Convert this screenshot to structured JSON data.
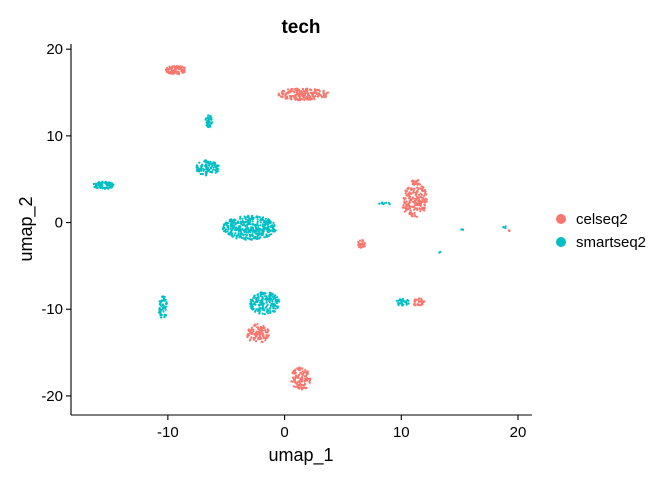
{
  "chart_data": {
    "type": "scatter",
    "title": "tech",
    "xlabel": "umap_1",
    "ylabel": "umap_2",
    "xlim": [
      -18.3,
      21.2
    ],
    "ylim": [
      -22.2,
      20.6
    ],
    "xticks": [
      -10,
      0,
      10,
      20
    ],
    "yticks": [
      -20,
      -10,
      0,
      10,
      20
    ],
    "grid": false,
    "legend_position": "right",
    "series": [
      {
        "name": "celseq2",
        "color": "#F8766D",
        "clusters": [
          {
            "cx": -9.3,
            "cy": 17.6,
            "rx": 0.9,
            "ry": 0.5,
            "n": 90
          },
          {
            "cx": 1.6,
            "cy": 14.8,
            "rx": 2.2,
            "ry": 0.7,
            "n": 180
          },
          {
            "cx": 11.2,
            "cy": 2.8,
            "rx": 1.0,
            "ry": 2.2,
            "n": 200
          },
          {
            "cx": 6.6,
            "cy": -2.5,
            "rx": 0.35,
            "ry": 0.5,
            "n": 30
          },
          {
            "cx": 11.5,
            "cy": -9.2,
            "rx": 0.5,
            "ry": 0.5,
            "n": 30
          },
          {
            "cx": -2.3,
            "cy": -12.8,
            "rx": 1.0,
            "ry": 1.1,
            "n": 110
          },
          {
            "cx": 1.4,
            "cy": -18.0,
            "rx": 0.9,
            "ry": 1.3,
            "n": 120
          },
          {
            "cx": 19.2,
            "cy": -0.9,
            "rx": 0.15,
            "ry": 0.15,
            "n": 3
          },
          {
            "cx": 10.3,
            "cy": 1.6,
            "rx": 0.3,
            "ry": 0.5,
            "n": 12
          }
        ]
      },
      {
        "name": "smartseq2",
        "color": "#00BFC4",
        "clusters": [
          {
            "cx": -6.5,
            "cy": 11.7,
            "rx": 0.3,
            "ry": 0.7,
            "n": 40
          },
          {
            "cx": -6.6,
            "cy": 6.3,
            "rx": 1.0,
            "ry": 0.9,
            "n": 100
          },
          {
            "cx": -15.5,
            "cy": 4.3,
            "rx": 0.9,
            "ry": 0.45,
            "n": 80
          },
          {
            "cx": -3.0,
            "cy": -0.6,
            "rx": 2.3,
            "ry": 1.4,
            "n": 380
          },
          {
            "cx": -10.4,
            "cy": -9.8,
            "rx": 0.4,
            "ry": 1.3,
            "n": 60
          },
          {
            "cx": -1.7,
            "cy": -9.3,
            "rx": 1.3,
            "ry": 1.3,
            "n": 180
          },
          {
            "cx": 10.1,
            "cy": -9.2,
            "rx": 0.6,
            "ry": 0.4,
            "n": 25
          },
          {
            "cx": 8.6,
            "cy": 2.2,
            "rx": 0.5,
            "ry": 0.15,
            "n": 8
          },
          {
            "cx": 15.2,
            "cy": -0.8,
            "rx": 0.1,
            "ry": 0.15,
            "n": 3
          },
          {
            "cx": 13.3,
            "cy": -3.4,
            "rx": 0.08,
            "ry": 0.08,
            "n": 2
          },
          {
            "cx": 18.9,
            "cy": -0.5,
            "rx": 0.2,
            "ry": 0.2,
            "n": 4
          }
        ]
      }
    ]
  }
}
